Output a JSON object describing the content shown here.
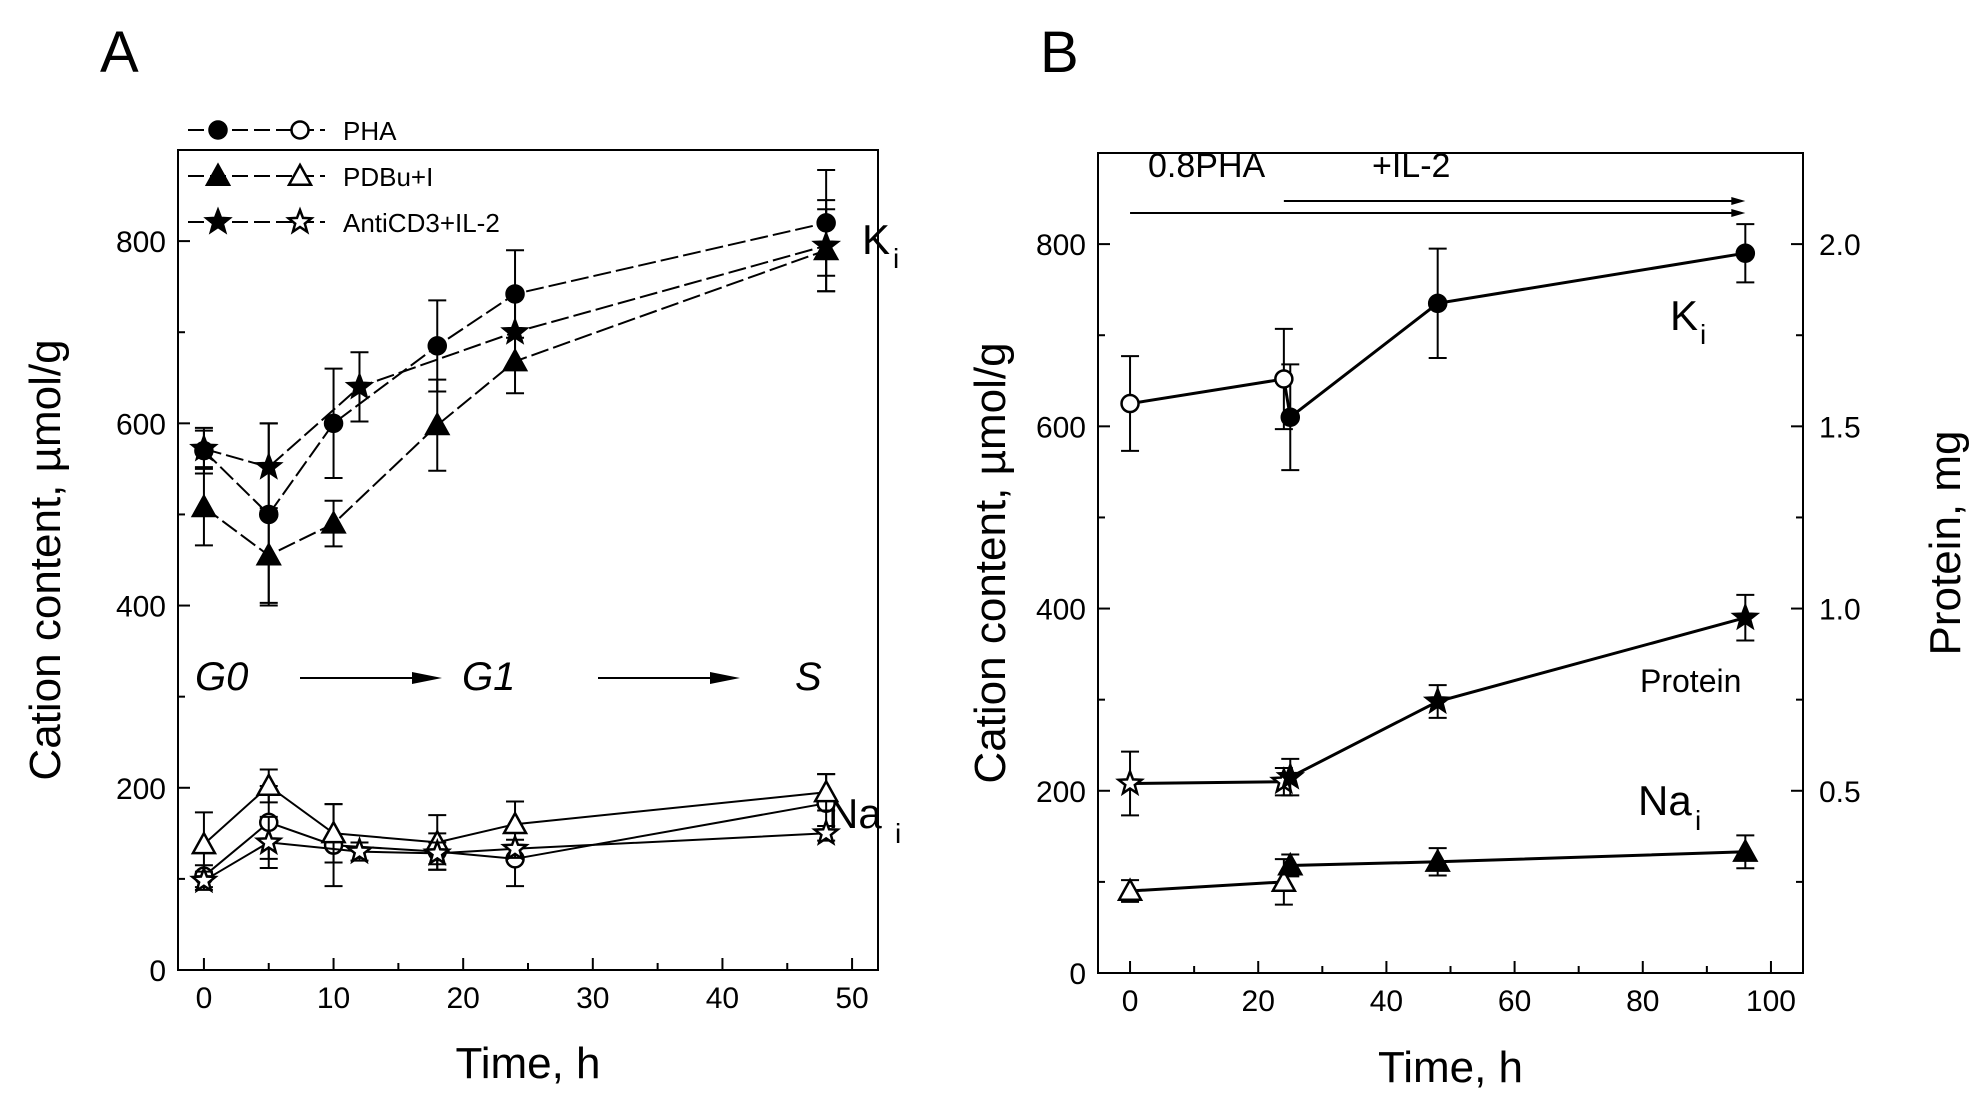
{
  "panels": {
    "a": {
      "label": "A"
    },
    "b": {
      "label": "B"
    }
  },
  "chart_data": [
    {
      "panel": "A",
      "type": "line",
      "xlabel": "Time, h",
      "ylabel": "Cation content,  µmol/g",
      "xlim": [
        -2,
        52
      ],
      "ylim": [
        0,
        900
      ],
      "xticks": [
        0,
        10,
        20,
        30,
        40,
        50
      ],
      "yticks": [
        0,
        200,
        400,
        600,
        800
      ],
      "grid": false,
      "legend_position": "top-left",
      "legend": [
        {
          "label": "PHA",
          "filled": "circle",
          "open": "circle"
        },
        {
          "label": "PDBu+I",
          "filled": "triangle",
          "open": "triangle"
        },
        {
          "label": "AntiCD3+IL-2",
          "filled": "star",
          "open": "star"
        }
      ],
      "annotations": {
        "phase_g0": "G0",
        "phase_g1": "G1",
        "phase_s": "S",
        "k_label": "K",
        "k_sub": "i",
        "na_label": "Na",
        "na_sub": "i"
      },
      "series": [
        {
          "name": "PHA",
          "group": "K",
          "marker": "circle",
          "fill": "filled",
          "dash": true,
          "x": [
            0,
            5,
            10,
            18,
            24,
            48
          ],
          "y": [
            570,
            500,
            600,
            685,
            742,
            820
          ],
          "err": [
            25,
            100,
            60,
            50,
            48,
            58
          ]
        },
        {
          "name": "PDBu+I",
          "group": "K",
          "marker": "triangle",
          "fill": "filled",
          "dash": true,
          "x": [
            0,
            5,
            10,
            18,
            24,
            48
          ],
          "y": [
            508,
            455,
            490,
            598,
            668,
            790
          ],
          "err": [
            42,
            52,
            25,
            50,
            35,
            45
          ]
        },
        {
          "name": "AntiCD3+IL-2",
          "group": "K",
          "marker": "star",
          "fill": "filled",
          "dash": true,
          "x": [
            0,
            5,
            12,
            24,
            48
          ],
          "y": [
            572,
            552,
            640,
            700,
            795
          ],
          "err": [
            20,
            48,
            38,
            40,
            50
          ]
        },
        {
          "name": "PHA",
          "group": "Na",
          "marker": "circle",
          "fill": "open",
          "dash": false,
          "x": [
            0,
            5,
            10,
            18,
            24,
            48
          ],
          "y": [
            103,
            162,
            137,
            130,
            122,
            183
          ],
          "err": [
            12,
            40,
            45,
            20,
            30,
            32
          ]
        },
        {
          "name": "PDBu+I",
          "group": "Na",
          "marker": "triangle",
          "fill": "open",
          "dash": false,
          "x": [
            0,
            5,
            10,
            18,
            24,
            48
          ],
          "y": [
            138,
            202,
            150,
            140,
            160,
            195
          ],
          "err": [
            35,
            18,
            32,
            30,
            25,
            20
          ]
        },
        {
          "name": "AntiCD3+IL-2",
          "group": "Na",
          "marker": "star",
          "fill": "open",
          "dash": false,
          "x": [
            0,
            5,
            12,
            18,
            24,
            48
          ],
          "y": [
            98,
            140,
            130,
            128,
            133,
            150
          ],
          "err": [
            10,
            28,
            10,
            12,
            10,
            8
          ]
        }
      ]
    },
    {
      "panel": "B",
      "type": "line",
      "xlabel": "Time, h",
      "ylabel": "Cation content,  µmol/g",
      "ylabel_right": "Protein,  mg",
      "xlim": [
        -5,
        105
      ],
      "ylim": [
        0,
        900
      ],
      "ylim_right": [
        0,
        2.25
      ],
      "xticks": [
        0,
        20,
        40,
        60,
        80,
        100
      ],
      "yticks": [
        0,
        200,
        400,
        600,
        800
      ],
      "yticks_right": [
        0.5,
        1.0,
        1.5,
        2.0
      ],
      "grid": false,
      "annotations": {
        "treatment_1": "0.8PHA",
        "treatment_2": "+IL-2",
        "k_label": "K",
        "k_sub": "i",
        "na_label": "Na",
        "na_sub": "i",
        "protein_label": "Protein"
      },
      "arrows": {
        "pha_span": [
          0,
          96
        ],
        "il2_span": [
          24,
          96
        ]
      },
      "series": [
        {
          "group": "K",
          "marker": "circle",
          "axis": "left",
          "x": [
            0,
            24,
            25,
            48,
            96
          ],
          "y": [
            625,
            652,
            610,
            735,
            790
          ],
          "err": [
            52,
            55,
            58,
            60,
            32
          ],
          "fill": [
            "open",
            "open",
            "filled",
            "filled",
            "filled"
          ]
        },
        {
          "group": "Protein",
          "marker": "star",
          "axis": "left",
          "x": [
            0,
            24,
            25,
            48,
            96
          ],
          "y": [
            208,
            210,
            215,
            298,
            390
          ],
          "err": [
            35,
            15,
            20,
            18,
            25
          ],
          "fill": [
            "open",
            "open",
            "filled",
            "filled",
            "filled"
          ]
        },
        {
          "group": "Na",
          "marker": "triangle",
          "axis": "left",
          "x": [
            0,
            24,
            25,
            48,
            96
          ],
          "y": [
            90,
            100,
            118,
            122,
            133
          ],
          "err": [
            12,
            25,
            12,
            15,
            18
          ],
          "fill": [
            "open",
            "open",
            "filled",
            "filled",
            "filled"
          ]
        }
      ]
    }
  ]
}
